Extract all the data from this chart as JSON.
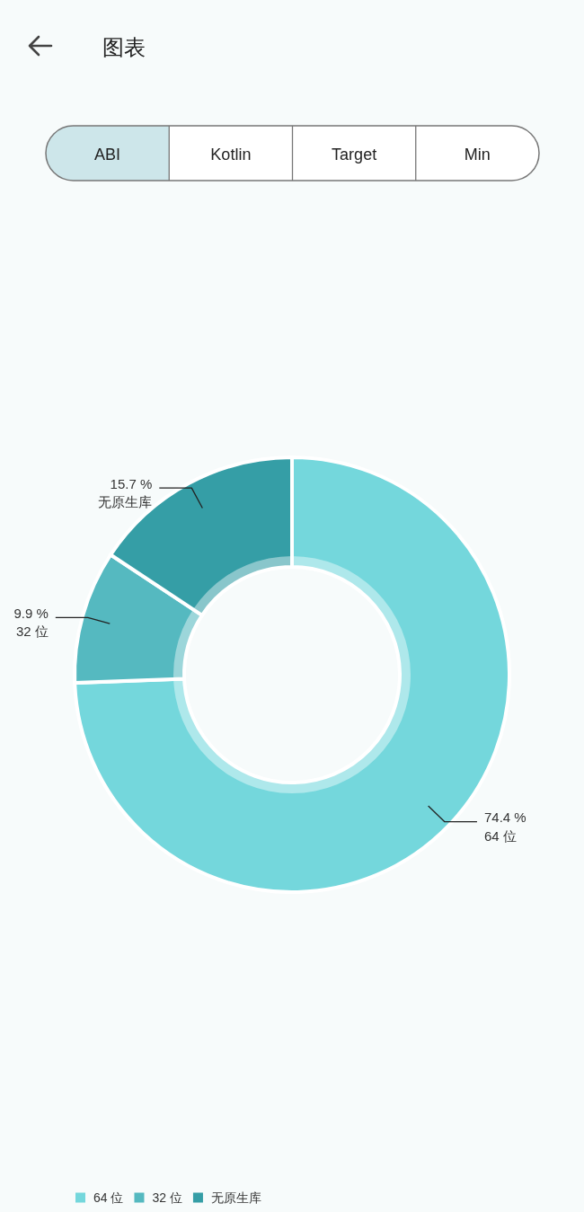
{
  "chart_data": {
    "type": "donut",
    "title": "图表",
    "categories": [
      "64 位",
      "32 位",
      "无原生库"
    ],
    "values": [
      74.4,
      9.9,
      15.7
    ],
    "colors": [
      "#74d7dc",
      "#55b9c0",
      "#359ea6"
    ],
    "value_labels": [
      "74.4 %",
      "9.9 %",
      "15.7 %"
    ],
    "legend": "bottom left",
    "annotations": [
      "ABI",
      "Kotlin",
      "Target",
      "Min"
    ]
  }
}
